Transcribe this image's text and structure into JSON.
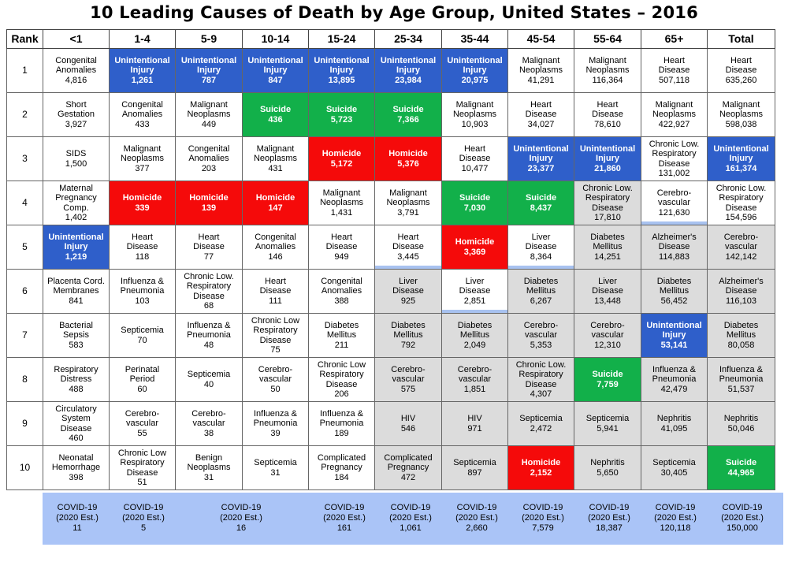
{
  "title": "10 Leading Causes of Death by Age Group, United States – 2016",
  "colors": {
    "blue": "#2f5fca",
    "green": "#12b04a",
    "red": "#f50a0a",
    "gray": "#dcdcdc",
    "covid_band": "#aac4f7",
    "accent_underline": "#a8c2f0"
  },
  "chart_data": {
    "type": "table",
    "columns": [
      "Rank",
      "<1",
      "1-4",
      "5-9",
      "10-14",
      "15-24",
      "25-34",
      "35-44",
      "45-54",
      "55-64",
      "65+",
      "Total"
    ],
    "rows": [
      {
        "rank": "1",
        "cells": [
          {
            "name": "Congenital\nAnomalies",
            "value": "4,816",
            "color": ""
          },
          {
            "name": "Unintentional\nInjury",
            "value": "1,261",
            "color": "blue"
          },
          {
            "name": "Unintentional\nInjury",
            "value": "787",
            "color": "blue"
          },
          {
            "name": "Unintentional\nInjury",
            "value": "847",
            "color": "blue"
          },
          {
            "name": "Unintentional\nInjury",
            "value": "13,895",
            "color": "blue"
          },
          {
            "name": "Unintentional\nInjury",
            "value": "23,984",
            "color": "blue"
          },
          {
            "name": "Unintentional\nInjury",
            "value": "20,975",
            "color": "blue"
          },
          {
            "name": "Malignant\nNeoplasms",
            "value": "41,291",
            "color": ""
          },
          {
            "name": "Malignant\nNeoplasms",
            "value": "116,364",
            "color": ""
          },
          {
            "name": "Heart\nDisease",
            "value": "507,118",
            "color": ""
          },
          {
            "name": "Heart\nDisease",
            "value": "635,260",
            "color": ""
          }
        ]
      },
      {
        "rank": "2",
        "cells": [
          {
            "name": "Short\nGestation",
            "value": "3,927",
            "color": ""
          },
          {
            "name": "Congenital\nAnomalies",
            "value": "433",
            "color": ""
          },
          {
            "name": "Malignant\nNeoplasms",
            "value": "449",
            "color": ""
          },
          {
            "name": "Suicide",
            "value": "436",
            "color": "green"
          },
          {
            "name": "Suicide",
            "value": "5,723",
            "color": "green"
          },
          {
            "name": "Suicide",
            "value": "7,366",
            "color": "green"
          },
          {
            "name": "Malignant\nNeoplasms",
            "value": "10,903",
            "color": ""
          },
          {
            "name": "Heart\nDisease",
            "value": "34,027",
            "color": ""
          },
          {
            "name": "Heart\nDisease",
            "value": "78,610",
            "color": ""
          },
          {
            "name": "Malignant\nNeoplasms",
            "value": "422,927",
            "color": ""
          },
          {
            "name": "Malignant\nNeoplasms",
            "value": "598,038",
            "color": ""
          }
        ]
      },
      {
        "rank": "3",
        "cells": [
          {
            "name": "SIDS",
            "value": "1,500",
            "color": ""
          },
          {
            "name": "Malignant\nNeoplasms",
            "value": "377",
            "color": ""
          },
          {
            "name": "Congenital\nAnomalies",
            "value": "203",
            "color": ""
          },
          {
            "name": "Malignant\nNeoplasms",
            "value": "431",
            "color": ""
          },
          {
            "name": "Homicide",
            "value": "5,172",
            "color": "red"
          },
          {
            "name": "Homicide",
            "value": "5,376",
            "color": "red"
          },
          {
            "name": "Heart\nDisease",
            "value": "10,477",
            "color": ""
          },
          {
            "name": "Unintentional\nInjury",
            "value": "23,377",
            "color": "blue"
          },
          {
            "name": "Unintentional\nInjury",
            "value": "21,860",
            "color": "blue"
          },
          {
            "name": "Chronic Low.\nRespiratory\nDisease",
            "value": "131,002",
            "color": ""
          },
          {
            "name": "Unintentional\nInjury",
            "value": "161,374",
            "color": "blue"
          }
        ]
      },
      {
        "rank": "4",
        "cells": [
          {
            "name": "Maternal\nPregnancy\nComp.",
            "value": "1,402",
            "color": ""
          },
          {
            "name": "Homicide",
            "value": "339",
            "color": "red"
          },
          {
            "name": "Homicide",
            "value": "139",
            "color": "red"
          },
          {
            "name": "Homicide",
            "value": "147",
            "color": "red"
          },
          {
            "name": "Malignant\nNeoplasms",
            "value": "1,431",
            "color": ""
          },
          {
            "name": "Malignant\nNeoplasms",
            "value": "3,791",
            "color": ""
          },
          {
            "name": "Suicide",
            "value": "7,030",
            "color": "green"
          },
          {
            "name": "Suicide",
            "value": "8,437",
            "color": "green"
          },
          {
            "name": "Chronic Low.\nRespiratory\nDisease",
            "value": "17,810",
            "color": "gray"
          },
          {
            "name": "Cerebro-\nvascular",
            "value": "121,630",
            "color": "",
            "underline": true
          },
          {
            "name": "Chronic Low.\nRespiratory\nDisease",
            "value": "154,596",
            "color": ""
          }
        ]
      },
      {
        "rank": "5",
        "cells": [
          {
            "name": "Unintentional\nInjury",
            "value": "1,219",
            "color": "blue"
          },
          {
            "name": "Heart\nDisease",
            "value": "118",
            "color": ""
          },
          {
            "name": "Heart\nDisease",
            "value": "77",
            "color": ""
          },
          {
            "name": "Congenital\nAnomalies",
            "value": "146",
            "color": ""
          },
          {
            "name": "Heart\nDisease",
            "value": "949",
            "color": ""
          },
          {
            "name": "Heart\nDisease",
            "value": "3,445",
            "color": "",
            "underline": true
          },
          {
            "name": "Homicide",
            "value": "3,369",
            "color": "red"
          },
          {
            "name": "Liver\nDisease",
            "value": "8,364",
            "color": "",
            "underline": true
          },
          {
            "name": "Diabetes\nMellitus",
            "value": "14,251",
            "color": "gray"
          },
          {
            "name": "Alzheimer's\nDisease",
            "value": "114,883",
            "color": "gray"
          },
          {
            "name": "Cerebro-\nvascular",
            "value": "142,142",
            "color": "gray"
          }
        ]
      },
      {
        "rank": "6",
        "cells": [
          {
            "name": "Placenta Cord.\nMembranes",
            "value": "841",
            "color": ""
          },
          {
            "name": "Influenza &\nPneumonia",
            "value": "103",
            "color": ""
          },
          {
            "name": "Chronic Low.\nRespiratory\nDisease",
            "value": "68",
            "color": ""
          },
          {
            "name": "Heart\nDisease",
            "value": "111",
            "color": ""
          },
          {
            "name": "Congenital\nAnomalies",
            "value": "388",
            "color": ""
          },
          {
            "name": "Liver\nDisease",
            "value": "925",
            "color": "gray"
          },
          {
            "name": "Liver\nDisease",
            "value": "2,851",
            "color": "",
            "underline": true
          },
          {
            "name": "Diabetes\nMellitus",
            "value": "6,267",
            "color": "gray"
          },
          {
            "name": "Liver\nDisease",
            "value": "13,448",
            "color": "gray"
          },
          {
            "name": "Diabetes\nMellitus",
            "value": "56,452",
            "color": "gray"
          },
          {
            "name": "Alzheimer's\nDisease",
            "value": "116,103",
            "color": "gray"
          }
        ]
      },
      {
        "rank": "7",
        "cells": [
          {
            "name": "Bacterial\nSepsis",
            "value": "583",
            "color": ""
          },
          {
            "name": "Septicemia",
            "value": "70",
            "color": ""
          },
          {
            "name": "Influenza &\nPneumonia",
            "value": "48",
            "color": ""
          },
          {
            "name": "Chronic Low\nRespiratory\nDisease",
            "value": "75",
            "color": ""
          },
          {
            "name": "Diabetes\nMellitus",
            "value": "211",
            "color": ""
          },
          {
            "name": "Diabetes\nMellitus",
            "value": "792",
            "color": "gray"
          },
          {
            "name": "Diabetes\nMellitus",
            "value": "2,049",
            "color": "gray"
          },
          {
            "name": "Cerebro-\nvascular",
            "value": "5,353",
            "color": "gray"
          },
          {
            "name": "Cerebro-\nvascular",
            "value": "12,310",
            "color": "gray"
          },
          {
            "name": "Unintentional\nInjury",
            "value": "53,141",
            "color": "blue"
          },
          {
            "name": "Diabetes\nMellitus",
            "value": "80,058",
            "color": "gray"
          }
        ]
      },
      {
        "rank": "8",
        "cells": [
          {
            "name": "Respiratory\nDistress",
            "value": "488",
            "color": ""
          },
          {
            "name": "Perinatal\nPeriod",
            "value": "60",
            "color": ""
          },
          {
            "name": "Septicemia",
            "value": "40",
            "color": ""
          },
          {
            "name": "Cerebro-\nvascular",
            "value": "50",
            "color": ""
          },
          {
            "name": "Chronic Low\nRespiratory\nDisease",
            "value": "206",
            "color": ""
          },
          {
            "name": "Cerebro-\nvascular",
            "value": "575",
            "color": "gray"
          },
          {
            "name": "Cerebro-\nvascular",
            "value": "1,851",
            "color": "gray"
          },
          {
            "name": "Chronic Low.\nRespiratory\nDisease",
            "value": "4,307",
            "color": "gray"
          },
          {
            "name": "Suicide",
            "value": "7,759",
            "color": "green"
          },
          {
            "name": "Influenza &\nPneumonia",
            "value": "42,479",
            "color": "gray"
          },
          {
            "name": "Influenza &\nPneumonia",
            "value": "51,537",
            "color": "gray"
          }
        ]
      },
      {
        "rank": "9",
        "cells": [
          {
            "name": "Circulatory\nSystem\nDisease",
            "value": "460",
            "color": ""
          },
          {
            "name": "Cerebro-\nvascular",
            "value": "55",
            "color": ""
          },
          {
            "name": "Cerebro-\nvascular",
            "value": "38",
            "color": ""
          },
          {
            "name": "Influenza &\nPneumonia",
            "value": "39",
            "color": ""
          },
          {
            "name": "Influenza &\nPneumonia",
            "value": "189",
            "color": ""
          },
          {
            "name": "HIV",
            "value": "546",
            "color": "gray"
          },
          {
            "name": "HIV",
            "value": "971",
            "color": "gray"
          },
          {
            "name": "Septicemia",
            "value": "2,472",
            "color": "gray"
          },
          {
            "name": "Septicemia",
            "value": "5,941",
            "color": "gray"
          },
          {
            "name": "Nephritis",
            "value": "41,095",
            "color": "gray"
          },
          {
            "name": "Nephritis",
            "value": "50,046",
            "color": "gray"
          }
        ]
      },
      {
        "rank": "10",
        "cells": [
          {
            "name": "Neonatal\nHemorrhage",
            "value": "398",
            "color": ""
          },
          {
            "name": "Chronic Low\nRespiratory\nDisease",
            "value": "51",
            "color": ""
          },
          {
            "name": "Benign\nNeoplasms",
            "value": "31",
            "color": ""
          },
          {
            "name": "Septicemia",
            "value": "31",
            "color": ""
          },
          {
            "name": "Complicated\nPregnancy",
            "value": "184",
            "color": ""
          },
          {
            "name": "Complicated\nPregnancy",
            "value": "472",
            "color": "gray"
          },
          {
            "name": "Septicemia",
            "value": "897",
            "color": "gray"
          },
          {
            "name": "Homicide",
            "value": "2,152",
            "color": "red"
          },
          {
            "name": "Nephritis",
            "value": "5,650",
            "color": "gray"
          },
          {
            "name": "Septicemia",
            "value": "30,405",
            "color": "gray"
          },
          {
            "name": "Suicide",
            "value": "44,965",
            "color": "green"
          }
        ]
      }
    ],
    "covid_row": {
      "label": "COVID-19",
      "sublabel": "(2020 Est.)",
      "entries": [
        {
          "group": "<1",
          "value": "11"
        },
        {
          "group": "1-4",
          "value": "5"
        },
        {
          "group": "5-14",
          "value": "16"
        },
        {
          "group": "15-24",
          "value": "161"
        },
        {
          "group": "25-34",
          "value": "1,061"
        },
        {
          "group": "35-44",
          "value": "2,660"
        },
        {
          "group": "45-54",
          "value": "7,579"
        },
        {
          "group": "55-64",
          "value": "18,387"
        },
        {
          "group": "65+",
          "value": "120,118"
        },
        {
          "group": "Total",
          "value": "150,000"
        }
      ]
    }
  }
}
